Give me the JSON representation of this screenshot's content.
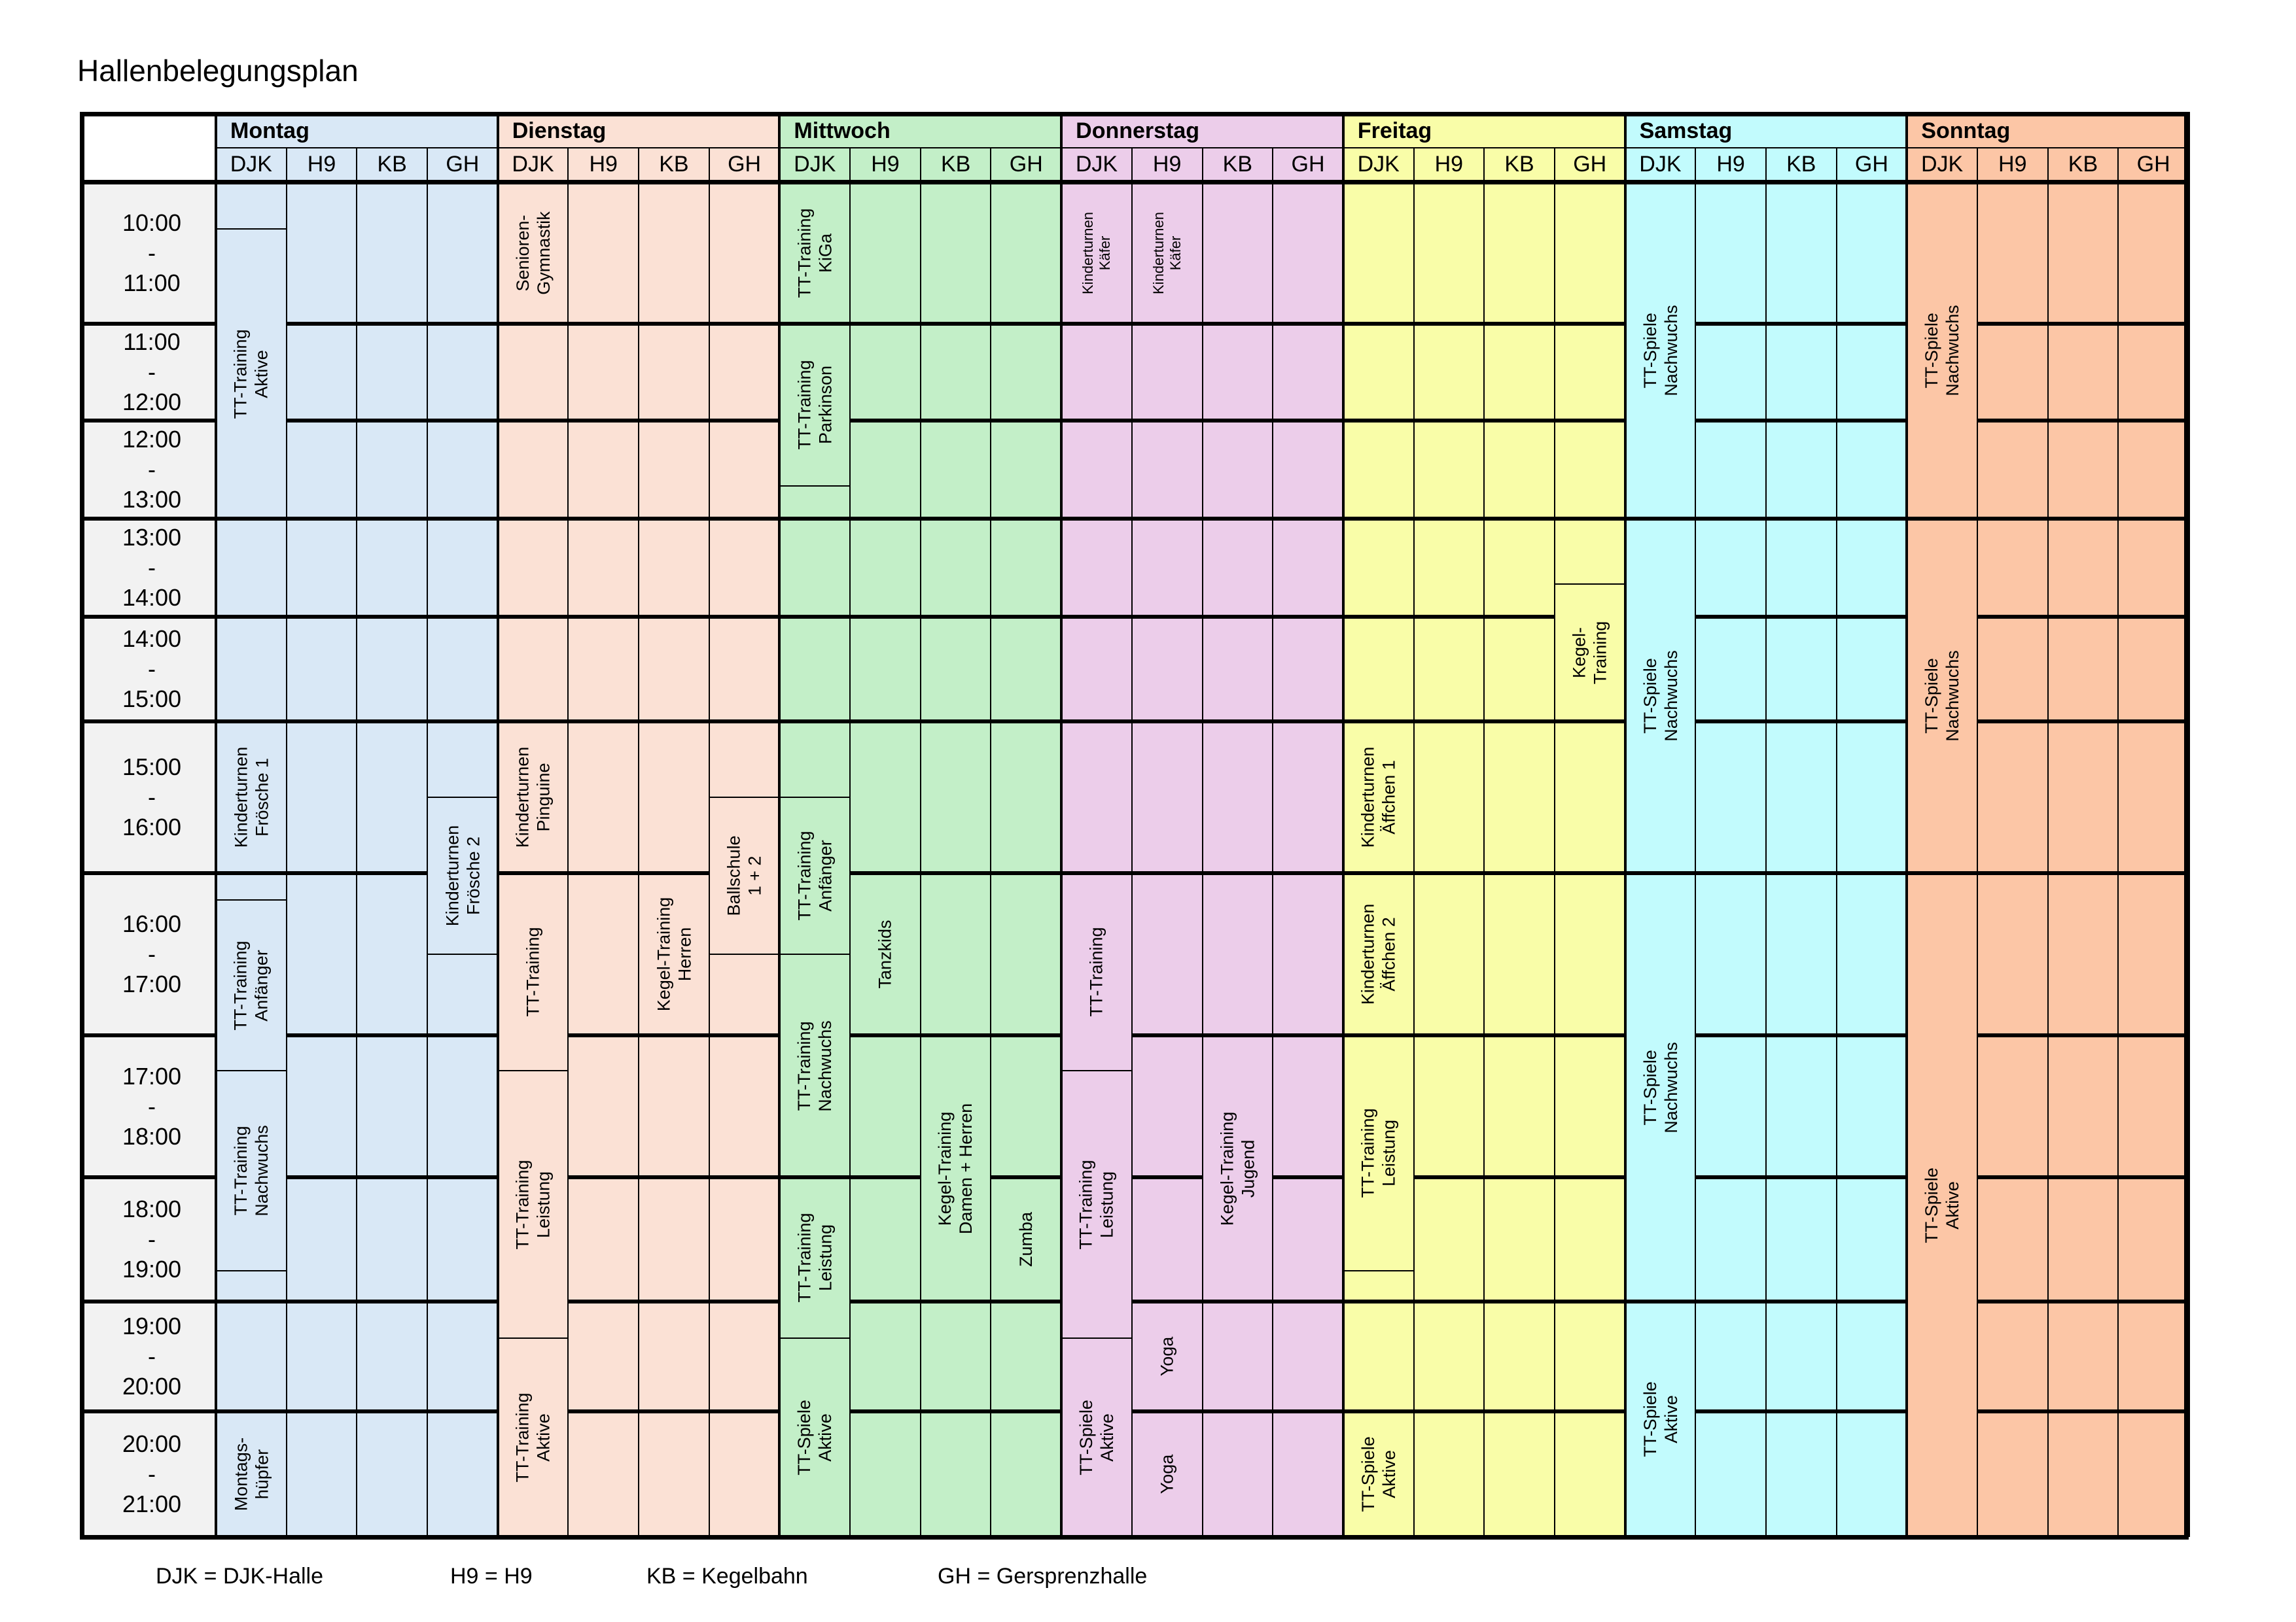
{
  "title": "Hallenbelegungsplan",
  "days": [
    {
      "name": "Montag",
      "color": "#d9e8f6"
    },
    {
      "name": "Dienstag",
      "color": "#fbe1d5"
    },
    {
      "name": "Mittwoch",
      "color": "#c3efc8"
    },
    {
      "name": "Donnerstag",
      "color": "#eccdea"
    },
    {
      "name": "Freitag",
      "color": "#f9fda8"
    },
    {
      "name": "Samstag",
      "color": "#c2fbfd"
    },
    {
      "name": "Sonntag",
      "color": "#fcc6a6"
    }
  ],
  "halls": [
    "DJK",
    "H9",
    "KB",
    "GH"
  ],
  "time_slots": [
    {
      "start": "10:00",
      "sep": "-",
      "end": "11:00"
    },
    {
      "start": "11:00",
      "sep": "-",
      "end": "12:00"
    },
    {
      "start": "12:00",
      "sep": "-",
      "end": "13:00"
    },
    {
      "start": "13:00",
      "sep": "-",
      "end": "14:00"
    },
    {
      "start": "14:00",
      "sep": "-",
      "end": "15:00"
    },
    {
      "start": "15:00",
      "sep": "-",
      "end": "16:00"
    },
    {
      "start": "16:00",
      "sep": "-",
      "end": "17:00"
    },
    {
      "start": "17:00",
      "sep": "-",
      "end": "18:00"
    },
    {
      "start": "18:00",
      "sep": "-",
      "end": "19:00"
    },
    {
      "start": "19:00",
      "sep": "-",
      "end": "20:00"
    },
    {
      "start": "20:00",
      "sep": "-",
      "end": "21:00"
    }
  ],
  "bookings": [
    {
      "day": 0,
      "hall": 0,
      "from": "10:20",
      "to": "13:00",
      "label": "TT-Training\nAktive",
      "boxed": true
    },
    {
      "day": 0,
      "hall": 0,
      "from": "15:00",
      "to": "16:00",
      "label": "Kinderturnen\nFrösche 1",
      "boxed": false
    },
    {
      "day": 0,
      "hall": 3,
      "from": "15:30",
      "to": "16:30",
      "label": "Kinderturnen\nFrösche 2",
      "boxed": true
    },
    {
      "day": 0,
      "hall": 0,
      "from": "16:10",
      "to": "17:15",
      "label": "TT-Training\nAnfänger",
      "boxed": true
    },
    {
      "day": 0,
      "hall": 0,
      "from": "17:15",
      "to": "18:45",
      "label": "TT-Training\nNachwuchs",
      "boxed": true
    },
    {
      "day": 0,
      "hall": 0,
      "from": "20:00",
      "to": "21:00",
      "label": "Montags-\nhüpfer",
      "boxed": false
    },
    {
      "day": 1,
      "hall": 0,
      "from": "10:00",
      "to": "11:00",
      "label": "Senioren-\nGymnastik",
      "boxed": false
    },
    {
      "day": 1,
      "hall": 0,
      "from": "15:00",
      "to": "16:00",
      "label": "Kinderturnen\nPinguine",
      "boxed": false
    },
    {
      "day": 1,
      "hall": 3,
      "from": "15:30",
      "to": "16:30",
      "label": "Ballschule\n1 + 2",
      "boxed": true
    },
    {
      "day": 1,
      "hall": 2,
      "from": "16:00",
      "to": "17:00",
      "label": "Kegel-Training\nHerren",
      "boxed": false
    },
    {
      "day": 1,
      "hall": 0,
      "from": "16:00",
      "to": "17:15",
      "label": "TT-Training",
      "boxed": false
    },
    {
      "day": 1,
      "hall": 0,
      "from": "17:15",
      "to": "19:20",
      "label": "TT-Training\nLeistung",
      "boxed": true
    },
    {
      "day": 1,
      "hall": 0,
      "from": "19:20",
      "to": "21:00",
      "label": "TT-Training\nAktive",
      "boxed": true
    },
    {
      "day": 2,
      "hall": 0,
      "from": "10:00",
      "to": "11:00",
      "label": "TT-Training\nKiGa",
      "boxed": false
    },
    {
      "day": 2,
      "hall": 0,
      "from": "11:00",
      "to": "12:40",
      "label": "TT-Training\nParkinson",
      "boxed": true
    },
    {
      "day": 2,
      "hall": 0,
      "from": "15:30",
      "to": "16:30",
      "label": "TT-Training\nAnfänger",
      "boxed": true
    },
    {
      "day": 2,
      "hall": 1,
      "from": "16:00",
      "to": "17:00",
      "label": "Tanzkids",
      "boxed": false
    },
    {
      "day": 2,
      "hall": 0,
      "from": "16:30",
      "to": "18:00",
      "label": "TT-Training\nNachwuchs",
      "boxed": true
    },
    {
      "day": 2,
      "hall": 0,
      "from": "18:00",
      "to": "19:20",
      "label": "TT-Training\nLeistung",
      "boxed": true
    },
    {
      "day": 2,
      "hall": 2,
      "from": "17:00",
      "to": "19:00",
      "label": "Kegel-Training\nDamen + Herren",
      "boxed": false
    },
    {
      "day": 2,
      "hall": 3,
      "from": "18:00",
      "to": "19:00",
      "label": "Zumba",
      "boxed": false
    },
    {
      "day": 2,
      "hall": 0,
      "from": "19:20",
      "to": "21:00",
      "label": "TT-Spiele\nAktive",
      "boxed": true
    },
    {
      "day": 3,
      "hall": 0,
      "from": "10:00",
      "to": "11:00",
      "label": "Kinderturnen\nKäfer",
      "boxed": false,
      "small": true
    },
    {
      "day": 3,
      "hall": 1,
      "from": "10:00",
      "to": "11:00",
      "label": "Kinderturnen\nKäfer",
      "boxed": false,
      "small": true
    },
    {
      "day": 3,
      "hall": 0,
      "from": "16:00",
      "to": "17:15",
      "label": "TT-Training",
      "boxed": false
    },
    {
      "day": 3,
      "hall": 0,
      "from": "17:15",
      "to": "19:20",
      "label": "TT-Training\nLeistung",
      "boxed": true
    },
    {
      "day": 3,
      "hall": 2,
      "from": "17:00",
      "to": "19:00",
      "label": "Kegel-Training\nJugend",
      "boxed": false
    },
    {
      "day": 3,
      "hall": 1,
      "from": "19:00",
      "to": "20:00",
      "label": "Yoga",
      "boxed": false
    },
    {
      "day": 3,
      "hall": 1,
      "from": "20:00",
      "to": "21:00",
      "label": "Yoga",
      "boxed": false
    },
    {
      "day": 3,
      "hall": 0,
      "from": "19:20",
      "to": "21:00",
      "label": "TT-Spiele\nAktive",
      "boxed": true
    },
    {
      "day": 4,
      "hall": 0,
      "from": "15:00",
      "to": "16:00",
      "label": "Kinderturnen\nÄffchen 1",
      "boxed": false
    },
    {
      "day": 4,
      "hall": 0,
      "from": "16:00",
      "to": "17:00",
      "label": "Kinderturnen\nÄffchen 2",
      "boxed": false
    },
    {
      "day": 4,
      "hall": 0,
      "from": "17:00",
      "to": "18:45",
      "label": "TT-Training\nLeistung",
      "boxed": true
    },
    {
      "day": 4,
      "hall": 0,
      "from": "20:00",
      "to": "21:00",
      "label": "TT-Spiele\nAktive",
      "boxed": false
    },
    {
      "day": 4,
      "hall": 3,
      "from": "13:40",
      "to": "15:00",
      "label": "Kegel-\nTraining",
      "boxed": true
    },
    {
      "day": 5,
      "hall": 0,
      "from": "10:00",
      "to": "13:00",
      "label": "TT-Spiele\nNachwuchs",
      "boxed": false
    },
    {
      "day": 5,
      "hall": 0,
      "from": "13:00",
      "to": "16:00",
      "label": "TT-Spiele\nNachwuchs",
      "boxed": false
    },
    {
      "day": 5,
      "hall": 0,
      "from": "16:00",
      "to": "19:00",
      "label": "TT-Spiele\nNachwuchs",
      "boxed": false
    },
    {
      "day": 5,
      "hall": 0,
      "from": "19:00",
      "to": "21:00",
      "label": "TT-Spiele\nAktive",
      "boxed": false
    },
    {
      "day": 6,
      "hall": 0,
      "from": "10:00",
      "to": "13:00",
      "label": "TT-Spiele\nNachwuchs",
      "boxed": false
    },
    {
      "day": 6,
      "hall": 0,
      "from": "13:00",
      "to": "16:00",
      "label": "TT-Spiele\nNachwuchs",
      "boxed": false
    },
    {
      "day": 6,
      "hall": 0,
      "from": "16:00",
      "to": "21:00",
      "label": "TT-Spiele\nAktive",
      "boxed": false
    }
  ],
  "legend": [
    "DJK = DJK-Halle",
    "H9 = H9",
    "KB = Kegelbahn",
    "GH = Gersprenzhalle"
  ]
}
